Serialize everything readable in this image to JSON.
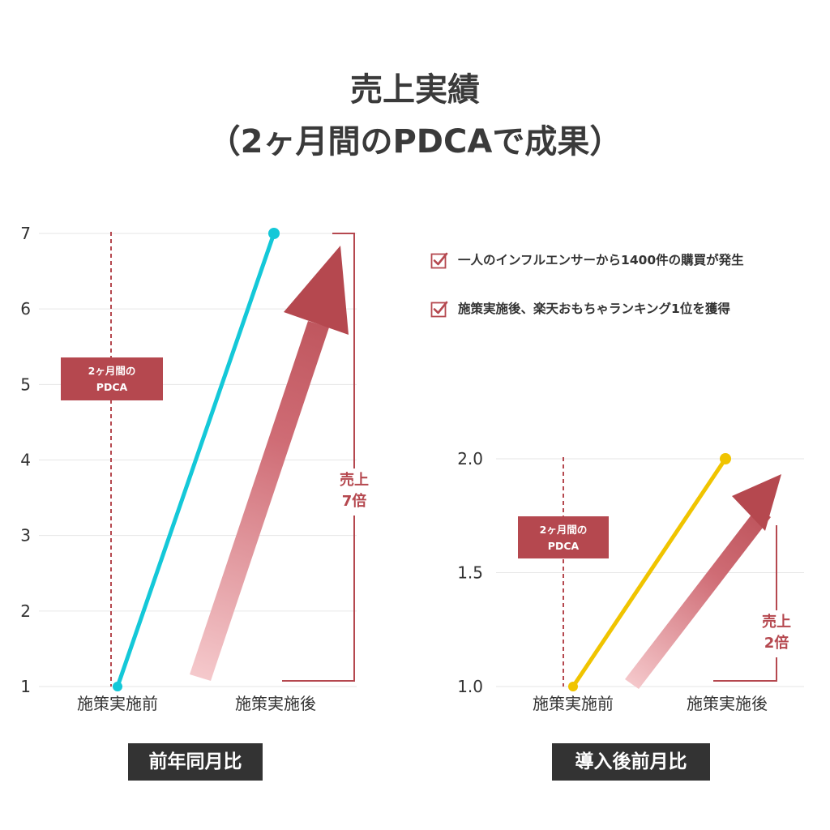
{
  "title": {
    "line1": "売上実績",
    "line2": "（2ヶ月間のPDCAで成果）"
  },
  "colors": {
    "accent_red": "#b5484f",
    "cyan_line": "#14c8d8",
    "yellow_line": "#f0c400",
    "caption_bg": "#333333",
    "grid": "#e6e6e6"
  },
  "checklist": [
    {
      "icon": "checkbox-checked-icon",
      "text": "一人のインフルエンサーから1400件の購買が発生"
    },
    {
      "icon": "checkbox-checked-icon",
      "text": "施策実施後、楽天おもちゃランキング1位を獲得"
    }
  ],
  "chart_data": [
    {
      "type": "line",
      "caption": "前年同月比",
      "categories": [
        "施策実施前",
        "施策実施後"
      ],
      "series": [
        {
          "values": [
            1,
            7
          ]
        }
      ],
      "ylim": [
        1,
        7
      ],
      "yticks": [
        "1",
        "2",
        "3",
        "4",
        "5",
        "6",
        "7"
      ],
      "grid": true,
      "marker_label": "2ヶ月間の\nPDCA",
      "marker_label_lines": [
        "2ヶ月間の",
        "PDCA"
      ],
      "growth_label_lines": [
        "売上",
        "7倍"
      ]
    },
    {
      "type": "line",
      "caption": "導入後前月比",
      "categories": [
        "施策実施前",
        "施策実施後"
      ],
      "series": [
        {
          "values": [
            1.0,
            2.0
          ]
        }
      ],
      "ylim": [
        1.0,
        2.0
      ],
      "yticks": [
        "1.0",
        "1.5",
        "2.0"
      ],
      "grid": true,
      "marker_label_lines": [
        "2ヶ月間の",
        "PDCA"
      ],
      "growth_label_lines": [
        "売上",
        "2倍"
      ]
    }
  ]
}
